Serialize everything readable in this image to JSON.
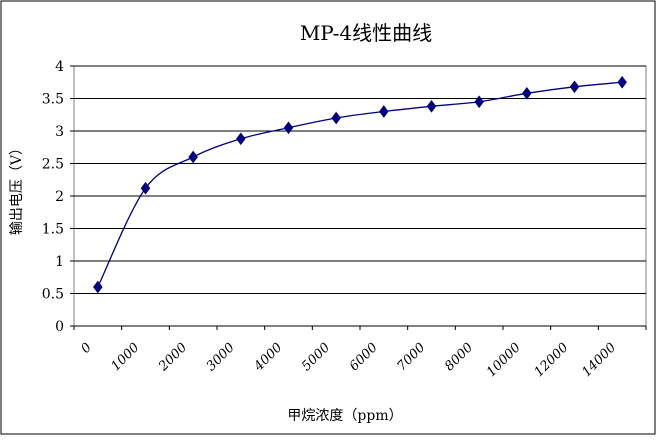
{
  "chart_data": {
    "type": "line",
    "title": "MP-4线性曲线",
    "xlabel": "甲烷浓度（ppm）",
    "ylabel": "输出电压（V）",
    "ylim": [
      0,
      4
    ],
    "y_ticks": [
      "0",
      "0.5",
      "1",
      "1.5",
      "2",
      "2.5",
      "3",
      "3.5",
      "4"
    ],
    "x_tick_labels": [
      "0",
      "1000",
      "2000",
      "3000",
      "4000",
      "5000",
      "6000",
      "7000",
      "8000",
      "10000",
      "12000",
      "14000"
    ],
    "grid": "horizontal",
    "legend": "none",
    "series": [
      {
        "color": "#000080",
        "marker": "diamond",
        "smooth": true,
        "points": [
          0.6,
          2.12,
          2.6,
          2.88,
          3.05,
          3.2,
          3.3,
          3.38,
          3.45,
          3.58,
          3.68,
          3.75
        ]
      }
    ]
  }
}
